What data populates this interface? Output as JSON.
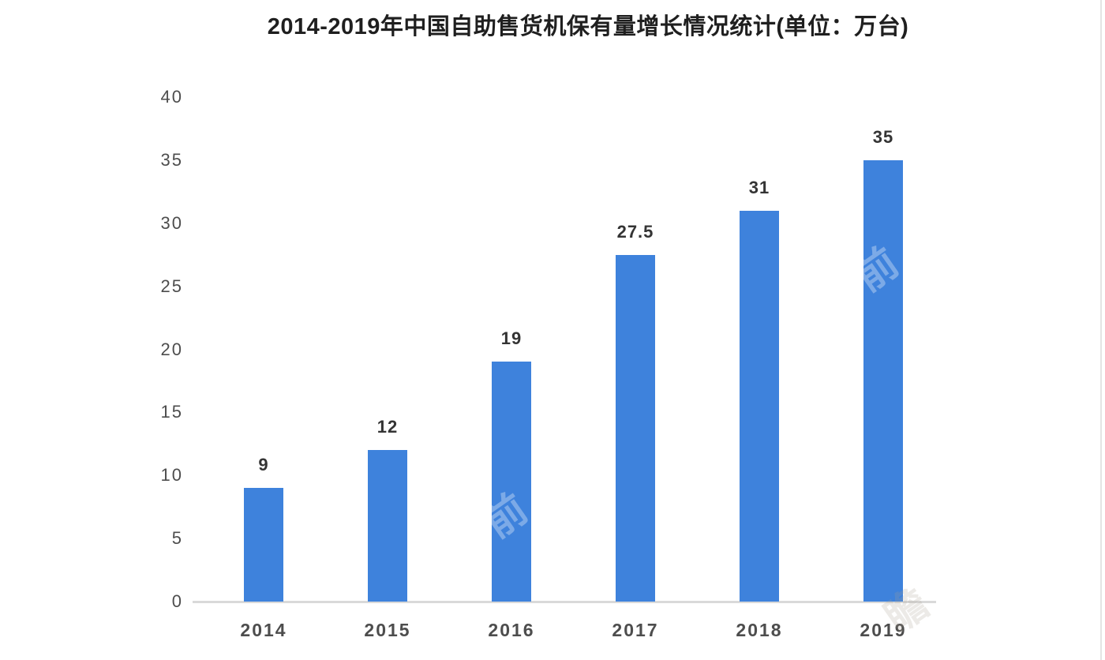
{
  "chart_data": {
    "type": "bar",
    "title": "2014-2019年中国自助售货机保有量增长情况统计(单位：万台)",
    "unit": "万台",
    "categories": [
      "2014",
      "2015",
      "2016",
      "2017",
      "2018",
      "2019"
    ],
    "values": [
      9,
      12,
      19,
      27.5,
      31,
      35
    ],
    "value_labels": [
      "9",
      "12",
      "19",
      "27.5",
      "31",
      "35"
    ],
    "y_ticks": [
      0,
      5,
      10,
      15,
      20,
      25,
      30,
      35,
      40
    ],
    "ylim": [
      0,
      40
    ],
    "xlabel": "",
    "ylabel": "",
    "grid": false,
    "legend": "none",
    "bar_color": "#3E82DC",
    "axis_line_color": "#d9d9d9",
    "tick_label_color": "#4d4d4d",
    "value_label_color": "#343434",
    "title_color": "#1f1f1f"
  },
  "watermarks": [
    {
      "text": "前"
    },
    {
      "text": "前"
    },
    {
      "text": "瞻"
    }
  ]
}
